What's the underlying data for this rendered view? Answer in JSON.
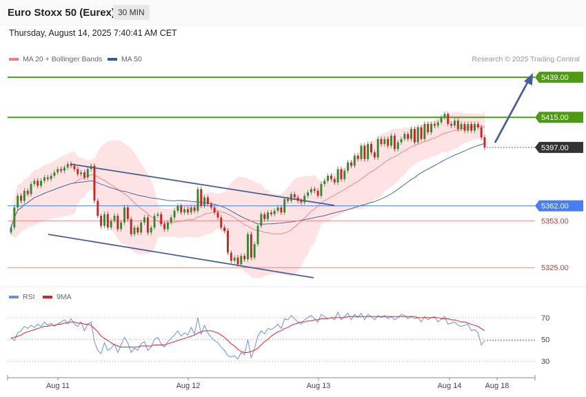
{
  "header": {
    "title": "Euro Stoxx 50 (Eurex)",
    "timeframe": "30 MIN",
    "datetime": "Thursday, August 14, 2025 7:40:41 AM CET",
    "copyright": "Research © 2025 Trading Central"
  },
  "legend": {
    "ma20": "MA 20 + Bollinger Bands",
    "ma50": "MA 50",
    "rsi": "RSI",
    "rsi_ma": "9MA"
  },
  "colors": {
    "ma20": "#f07c7c",
    "ma50": "#35599a",
    "bands": "#fde3e3",
    "up": "#2f8a2f",
    "down": "#cc2222",
    "resistance": "#4f9a14",
    "pivot": "#4a7ef0",
    "support": "#e88a8a",
    "last": "#333333",
    "channel": "#465e99",
    "rsi": "#6a8fe0",
    "rsi_ma": "#dd2222"
  },
  "chart_data": [
    {
      "type": "candlestick",
      "x_ticks": [
        "Aug 11",
        "Aug 12",
        "Aug 13",
        "Aug 14",
        "Aug 18"
      ],
      "ylim": [
        5316,
        5444
      ],
      "levels": [
        {
          "label": "5439.00",
          "value": 5439,
          "kind": "resistance"
        },
        {
          "label": "5415.00",
          "value": 5415,
          "kind": "resistance"
        },
        {
          "label": "5397.00",
          "value": 5397,
          "kind": "last"
        },
        {
          "label": "5362.00",
          "value": 5362,
          "kind": "pivot"
        },
        {
          "label": "5353.00",
          "value": 5353,
          "kind": "support"
        },
        {
          "label": "5325.00",
          "value": 5325,
          "kind": "support"
        }
      ],
      "close": [
        5349,
        5361,
        5368,
        5365,
        5371,
        5369,
        5375,
        5377,
        5374,
        5377,
        5379,
        5378,
        5380,
        5382,
        5384,
        5383,
        5385,
        5387,
        5386,
        5384,
        5381,
        5382,
        5379,
        5384,
        5386,
        5365,
        5356,
        5350,
        5357,
        5349,
        5353,
        5356,
        5348,
        5352,
        5361,
        5354,
        5345,
        5349,
        5346,
        5352,
        5355,
        5346,
        5349,
        5356,
        5357,
        5351,
        5348,
        5352,
        5355,
        5359,
        5362,
        5358,
        5360,
        5358,
        5361,
        5359,
        5372,
        5362,
        5367,
        5363,
        5361,
        5358,
        5355,
        5349,
        5347,
        5334,
        5329,
        5331,
        5327,
        5332,
        5330,
        5345,
        5331,
        5339,
        5350,
        5357,
        5354,
        5358,
        5357,
        5359,
        5361,
        5358,
        5366,
        5365,
        5369,
        5367,
        5365,
        5364,
        5368,
        5370,
        5372,
        5371,
        5368,
        5375,
        5377,
        5380,
        5378,
        5376,
        5384,
        5378,
        5383,
        5388,
        5386,
        5392,
        5390,
        5398,
        5390,
        5399,
        5394,
        5391,
        5402,
        5399,
        5402,
        5398,
        5404,
        5396,
        5400,
        5402,
        5405,
        5402,
        5408,
        5400,
        5409,
        5402,
        5411,
        5406,
        5411,
        5410,
        5412,
        5415,
        5417,
        5411,
        5410,
        5413,
        5408,
        5411,
        5407,
        5411,
        5407,
        5411,
        5409,
        5403,
        5397
      ]
    },
    {
      "type": "line",
      "title": "RSI",
      "ylim": [
        20,
        80
      ],
      "y_ticks": [
        70,
        50,
        30
      ],
      "series": [
        {
          "name": "RSI",
          "values": [
            52,
            49,
            56,
            58,
            62,
            60,
            63,
            61,
            64,
            62,
            66,
            63,
            65,
            62,
            64,
            66,
            68,
            65,
            69,
            64,
            62,
            66,
            58,
            64,
            66,
            48,
            40,
            37,
            47,
            40,
            42,
            46,
            38,
            45,
            52,
            47,
            38,
            42,
            40,
            46,
            48,
            40,
            43,
            50,
            52,
            46,
            43,
            48,
            51,
            54,
            58,
            53,
            56,
            54,
            61,
            55,
            70,
            55,
            63,
            56,
            52,
            49,
            47,
            43,
            40,
            35,
            34,
            35,
            32,
            38,
            36,
            50,
            33,
            42,
            53,
            58,
            55,
            60,
            59,
            61,
            64,
            60,
            69,
            68,
            72,
            69,
            66,
            64,
            68,
            70,
            72,
            69,
            66,
            73,
            71,
            69,
            70,
            68,
            75,
            68,
            71,
            74,
            68,
            73,
            70,
            74,
            68,
            73,
            71,
            68,
            72,
            70,
            72,
            69,
            71,
            68,
            70,
            73,
            72,
            69,
            71,
            69,
            70,
            66,
            71,
            68,
            70,
            71,
            66,
            69,
            71,
            64,
            65,
            66,
            63,
            62,
            63,
            64,
            58,
            59,
            56,
            45,
            49
          ]
        },
        {
          "name": "9MA",
          "values": [
            51,
            52,
            53,
            54,
            56,
            57,
            58,
            59,
            60,
            61,
            62,
            62,
            63,
            63,
            64,
            64,
            65,
            65,
            66,
            66,
            65,
            65,
            64,
            64,
            63,
            60,
            57,
            53,
            51,
            49,
            47,
            45,
            44,
            43,
            43,
            43,
            43,
            43,
            43,
            44,
            44,
            44,
            44,
            45,
            45,
            45,
            45,
            46,
            47,
            48,
            49,
            50,
            51,
            52,
            53,
            54,
            56,
            57,
            58,
            58,
            58,
            57,
            56,
            54,
            52,
            49,
            46,
            44,
            41,
            39,
            38,
            38,
            39,
            40,
            42,
            45,
            48,
            50,
            53,
            55,
            57,
            58,
            60,
            61,
            63,
            64,
            65,
            66,
            66,
            67,
            67,
            68,
            68,
            69,
            69,
            69,
            70,
            70,
            70,
            70,
            70,
            71,
            71,
            71,
            71,
            71,
            71,
            71,
            71,
            71,
            71,
            71,
            71,
            71,
            71,
            71,
            71,
            71,
            71,
            71,
            71,
            71,
            70,
            70,
            70,
            70,
            70,
            70,
            70,
            69,
            69,
            69,
            68,
            68,
            67,
            66,
            66,
            65,
            64,
            63,
            62,
            60,
            58
          ]
        }
      ]
    }
  ]
}
